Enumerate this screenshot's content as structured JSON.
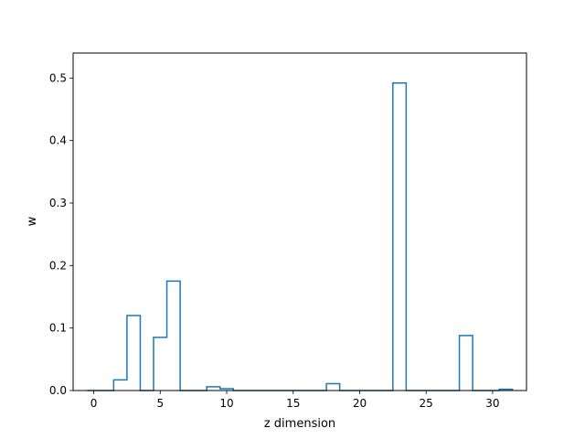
{
  "chart_data": {
    "type": "bar",
    "style": "step-histogram",
    "xlabel": "z dimension",
    "ylabel": "w",
    "xlim": [
      -1.55,
      32.55
    ],
    "ylim": [
      0,
      0.54
    ],
    "xticks": [
      0,
      5,
      10,
      15,
      20,
      25,
      30
    ],
    "yticks": [
      0.0,
      0.1,
      0.2,
      0.3,
      0.4,
      0.5
    ],
    "ytick_labels": [
      "0.0",
      "0.1",
      "0.2",
      "0.3",
      "0.4",
      "0.5"
    ],
    "grid": false,
    "color": "#1f77b4",
    "x": [
      0,
      1,
      2,
      3,
      4,
      5,
      6,
      7,
      8,
      9,
      10,
      11,
      12,
      13,
      14,
      15,
      16,
      17,
      18,
      19,
      20,
      21,
      22,
      23,
      24,
      25,
      26,
      27,
      28,
      29,
      30,
      31
    ],
    "values": [
      0,
      0,
      0.017,
      0.12,
      0,
      0.085,
      0.175,
      0,
      0,
      0.006,
      0.003,
      0,
      0,
      0,
      0,
      0,
      0,
      0,
      0.011,
      0,
      0,
      0,
      0,
      0.492,
      0,
      0,
      0,
      0,
      0.088,
      0,
      0,
      0.002
    ]
  }
}
